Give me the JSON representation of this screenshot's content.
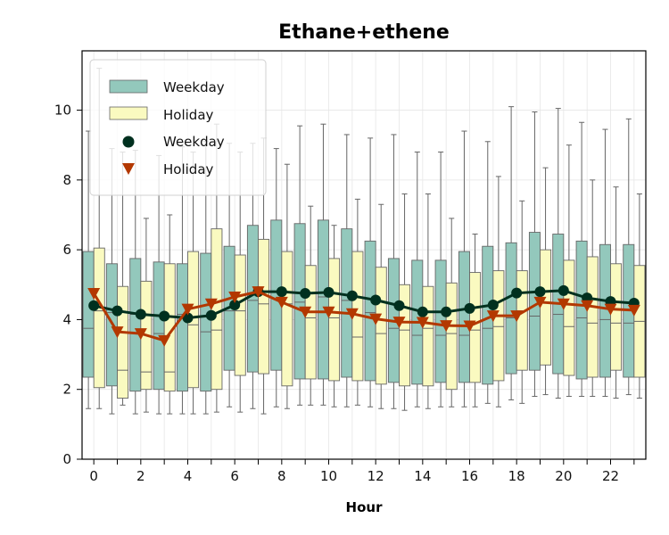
{
  "chart_data": {
    "type": "box",
    "title": "Ethane+ethene",
    "xlabel": "Hour",
    "ylabel": "",
    "xlim": [
      -0.5,
      23.5
    ],
    "ylim": [
      0,
      11.7
    ],
    "x_ticks": [
      0,
      2,
      4,
      6,
      8,
      10,
      12,
      14,
      16,
      18,
      20,
      22
    ],
    "y_ticks": [
      0,
      2,
      4,
      6,
      8,
      10
    ],
    "grid": true,
    "legend_position": "top-left",
    "legend": [
      {
        "label": "Weekday",
        "marker": "box"
      },
      {
        "label": "Holiday",
        "marker": "box"
      },
      {
        "label": "Weekday",
        "marker": "circle"
      },
      {
        "label": "Holiday",
        "marker": "triangle-down"
      }
    ],
    "colors": {
      "weekday_box": "#93c8bc",
      "holiday_box": "#fafac0",
      "weekday_line": "#00301f",
      "holiday_line": "#b33800",
      "box_edge": "#666666"
    },
    "hours": [
      0,
      1,
      2,
      3,
      4,
      5,
      6,
      7,
      8,
      9,
      10,
      11,
      12,
      13,
      14,
      15,
      16,
      17,
      18,
      19,
      20,
      21,
      22,
      23
    ],
    "box_series": [
      {
        "name": "Weekday",
        "whisker_low": [
          1.45,
          1.3,
          1.3,
          1.3,
          1.3,
          1.3,
          1.5,
          1.45,
          1.5,
          1.55,
          1.55,
          1.5,
          1.5,
          1.45,
          1.5,
          1.5,
          1.5,
          1.6,
          1.7,
          1.8,
          1.75,
          1.8,
          1.8,
          1.85
        ],
        "q1": [
          2.35,
          2.1,
          1.95,
          2.0,
          1.95,
          1.95,
          2.55,
          2.5,
          2.55,
          2.3,
          2.3,
          2.35,
          2.25,
          2.2,
          2.15,
          2.2,
          2.2,
          2.15,
          2.45,
          2.55,
          2.45,
          2.3,
          2.35,
          2.35
        ],
        "median": [
          3.75,
          4.2,
          4.15,
          3.6,
          4.15,
          3.65,
          4.25,
          4.55,
          4.6,
          4.5,
          4.65,
          4.55,
          4.2,
          3.75,
          3.55,
          3.55,
          3.55,
          3.75,
          4.05,
          4.1,
          4.15,
          4.05,
          4.0,
          3.9
        ],
        "q3": [
          5.95,
          5.6,
          5.75,
          5.65,
          5.6,
          5.9,
          6.1,
          6.7,
          6.85,
          6.75,
          6.85,
          6.6,
          6.25,
          5.75,
          5.7,
          5.7,
          5.95,
          6.1,
          6.2,
          6.5,
          6.45,
          6.25,
          6.15,
          6.15
        ],
        "whisker_high": [
          9.4,
          8.9,
          8.85,
          8.7,
          8.95,
          9.1,
          9.05,
          9.05,
          8.9,
          9.55,
          9.6,
          9.3,
          9.2,
          9.3,
          8.8,
          8.8,
          9.4,
          9.1,
          10.1,
          9.95,
          10.05,
          9.65,
          9.45,
          9.75
        ]
      },
      {
        "name": "Holiday",
        "whisker_low": [
          1.45,
          1.55,
          1.35,
          1.3,
          1.3,
          1.35,
          1.35,
          1.3,
          1.45,
          1.55,
          1.5,
          1.55,
          1.45,
          1.4,
          1.45,
          1.5,
          1.5,
          1.5,
          1.6,
          1.85,
          1.8,
          1.8,
          1.75,
          1.75
        ],
        "q1": [
          2.05,
          1.75,
          2.0,
          1.95,
          2.05,
          2.0,
          2.4,
          2.45,
          2.1,
          2.3,
          2.25,
          2.25,
          2.15,
          2.1,
          2.1,
          2.0,
          2.2,
          2.25,
          2.55,
          2.7,
          2.4,
          2.35,
          2.55,
          2.35
        ],
        "median": [
          4.25,
          2.55,
          2.5,
          2.5,
          3.85,
          3.7,
          4.25,
          4.45,
          4.45,
          4.05,
          4.05,
          3.5,
          3.6,
          3.7,
          3.75,
          3.6,
          3.7,
          3.8,
          4.25,
          4.5,
          3.8,
          3.9,
          3.9,
          3.95
        ],
        "q3": [
          6.05,
          4.95,
          5.1,
          5.6,
          5.95,
          6.6,
          5.85,
          6.3,
          5.95,
          5.55,
          5.75,
          5.95,
          5.5,
          5.0,
          4.95,
          5.05,
          5.35,
          5.4,
          5.4,
          6.0,
          5.7,
          5.8,
          5.6,
          5.55
        ],
        "whisker_high": [
          11.2,
          8.8,
          6.9,
          7.0,
          8.8,
          9.6,
          8.8,
          9.2,
          8.45,
          7.25,
          6.7,
          7.45,
          7.3,
          7.6,
          7.6,
          6.9,
          6.45,
          8.1,
          7.4,
          8.35,
          9.0,
          8.0,
          7.8,
          7.6
        ]
      }
    ],
    "line_series": [
      {
        "name": "Weekday",
        "marker": "circle",
        "values": [
          4.4,
          4.25,
          4.15,
          4.1,
          4.05,
          4.12,
          4.42,
          4.8,
          4.8,
          4.75,
          4.78,
          4.68,
          4.56,
          4.4,
          4.22,
          4.22,
          4.32,
          4.42,
          4.76,
          4.8,
          4.83,
          4.62,
          4.52,
          4.47
        ]
      },
      {
        "name": "Holiday",
        "marker": "triangle-down",
        "values": [
          4.75,
          3.65,
          3.6,
          3.4,
          4.3,
          4.45,
          4.65,
          4.8,
          4.5,
          4.22,
          4.22,
          4.17,
          4.02,
          3.93,
          3.92,
          3.83,
          3.82,
          4.11,
          4.11,
          4.5,
          4.45,
          4.4,
          4.3,
          4.27
        ]
      }
    ]
  }
}
